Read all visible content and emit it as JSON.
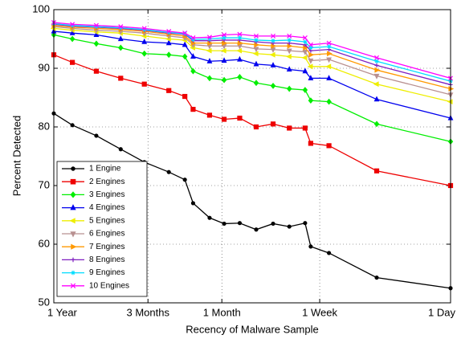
{
  "chart_data": {
    "type": "line",
    "x_label": "Recency of Malware Sample",
    "y_label": "Percent Detected",
    "x": [
      365,
      277,
      194,
      135,
      95,
      66,
      52,
      46,
      36,
      29,
      23,
      18,
      14,
      11,
      8.7,
      8,
      6.1,
      3,
      1
    ],
    "xlim": [
      365,
      1
    ],
    "xlog": true,
    "xticks": [
      {
        "value": 365,
        "label": "1 Year"
      },
      {
        "value": 90,
        "label": "3 Months"
      },
      {
        "value": 30,
        "label": "1 Month"
      },
      {
        "value": 7,
        "label": "1 Week"
      },
      {
        "value": 1,
        "label": "1 Day"
      }
    ],
    "ylim": [
      50,
      100
    ],
    "yticks": [
      50,
      60,
      70,
      80,
      90,
      100
    ],
    "grid": true,
    "legend": "lower left",
    "series": [
      {
        "name": "1 Engine",
        "color": "#000000",
        "marker": "circle",
        "values": [
          82.3,
          80.3,
          78.5,
          76.2,
          74,
          72.3,
          71,
          67,
          64.5,
          63.5,
          63.6,
          62.5,
          63.5,
          63,
          63.6,
          59.6,
          58.5,
          54.3,
          52.5
        ]
      },
      {
        "name": "2 Engines",
        "color": "#ee0000",
        "marker": "square",
        "values": [
          92.3,
          91,
          89.5,
          88.3,
          87.3,
          86.2,
          85.2,
          83,
          82,
          81.3,
          81.5,
          80,
          80.5,
          79.8,
          79.8,
          77.2,
          76.8,
          72.5,
          70
        ]
      },
      {
        "name": "3 Engines",
        "color": "#00ee00",
        "marker": "diamond",
        "values": [
          95.7,
          95,
          94.2,
          93.5,
          92.5,
          92.3,
          92,
          89.5,
          88.3,
          88,
          88.5,
          87.5,
          87,
          86.5,
          86.3,
          84.5,
          84.3,
          80.5,
          77.5
        ]
      },
      {
        "name": "4 Engines",
        "color": "#0000ee",
        "marker": "tri-up",
        "values": [
          96.3,
          96,
          95.7,
          95,
          94.5,
          94.3,
          94,
          92,
          91.2,
          91.3,
          91.5,
          90.7,
          90.5,
          89.8,
          89.5,
          88.3,
          88.3,
          84.7,
          81.5
        ]
      },
      {
        "name": "5 Engines",
        "color": "#eeee00",
        "marker": "tri-left",
        "values": [
          96.8,
          96.5,
          96.2,
          96,
          95.5,
          95,
          94.8,
          93.5,
          93,
          93,
          93,
          92.5,
          92.3,
          92,
          91.8,
          90.3,
          90.3,
          87.3,
          84.3
        ]
      },
      {
        "name": "6 Engines",
        "color": "#b89090",
        "marker": "tri-down",
        "values": [
          97.1,
          96.8,
          96.5,
          96.3,
          96,
          95.5,
          95.2,
          94,
          93.8,
          93.8,
          93.8,
          93.3,
          93.2,
          93,
          92.8,
          91.3,
          91.5,
          88.7,
          85.5
        ]
      },
      {
        "name": "7 Engines",
        "color": "#ff9900",
        "marker": "tri-right",
        "values": [
          97.3,
          97,
          96.8,
          96.6,
          96.3,
          95.8,
          95.5,
          94.3,
          94.3,
          94.3,
          94.3,
          94,
          93.8,
          93.8,
          93.5,
          92.3,
          92.5,
          89.7,
          86.5
        ]
      },
      {
        "name": "8 Engines",
        "color": "#8020c0",
        "marker": "plus",
        "values": [
          97.5,
          97.2,
          97,
          96.8,
          96.5,
          96,
          95.8,
          94.7,
          94.7,
          94.8,
          94.8,
          94.5,
          94.3,
          94.3,
          94,
          93,
          93.2,
          90.5,
          87.2
        ]
      },
      {
        "name": "9 Engines",
        "color": "#00ddff",
        "marker": "star",
        "values": [
          97.6,
          97.3,
          97.1,
          96.9,
          96.6,
          96.1,
          95.9,
          94.9,
          95,
          95.2,
          95.2,
          94.8,
          94.7,
          94.8,
          94.5,
          93.5,
          93.7,
          91.2,
          87.8
        ]
      },
      {
        "name": "10 Engines",
        "color": "#ff00ff",
        "marker": "cross",
        "values": [
          97.8,
          97.5,
          97.3,
          97.1,
          96.8,
          96.3,
          96,
          95.2,
          95.3,
          95.7,
          95.8,
          95.5,
          95.5,
          95.5,
          95.2,
          94,
          94.3,
          91.8,
          88.3
        ]
      }
    ]
  }
}
